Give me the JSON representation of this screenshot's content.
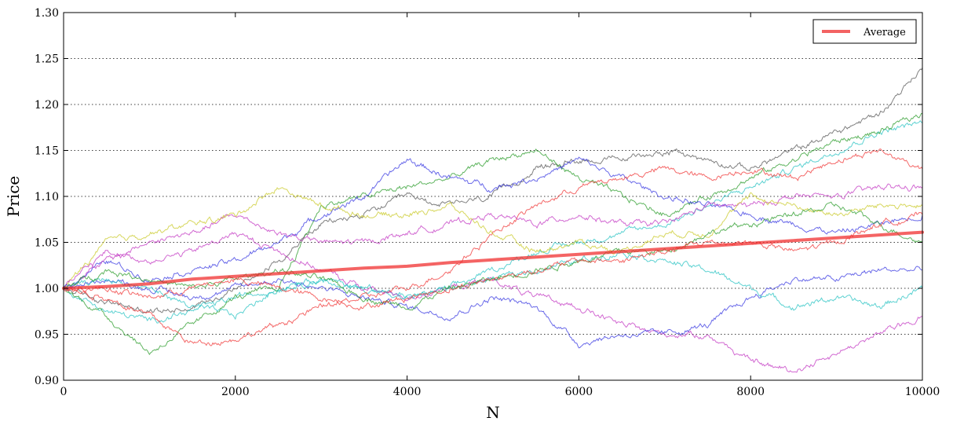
{
  "chart_data": {
    "type": "line",
    "xlabel": "N",
    "ylabel": "Price",
    "xlim": [
      0,
      10000
    ],
    "ylim": [
      0.9,
      1.3
    ],
    "x_ticks": [
      0,
      2000,
      4000,
      6000,
      8000,
      10000
    ],
    "y_ticks": [
      0.9,
      0.95,
      1.0,
      1.05,
      1.1,
      1.15,
      1.2,
      1.25,
      1.3
    ],
    "y_tick_labels": [
      "0.90",
      "0.95",
      "1.00",
      "1.05",
      "1.10",
      "1.15",
      "1.20",
      "1.25",
      "1.30"
    ],
    "grid": "horizontal-dotted",
    "legend": {
      "position": "top-right",
      "entries": [
        "Average"
      ]
    },
    "x": [
      0,
      500,
      1000,
      1500,
      2000,
      2500,
      3000,
      3500,
      4000,
      4500,
      5000,
      5500,
      6000,
      6500,
      7000,
      7500,
      8000,
      8500,
      9000,
      9500,
      10000
    ],
    "series": [
      {
        "color": "#505050",
        "values": [
          1.0,
          0.985,
          0.975,
          0.98,
          1.0,
          1.03,
          1.07,
          1.08,
          1.1,
          1.09,
          1.1,
          1.13,
          1.14,
          1.14,
          1.15,
          1.14,
          1.13,
          1.15,
          1.17,
          1.19,
          1.24
        ]
      },
      {
        "color": "#20c0c0",
        "values": [
          1.0,
          0.975,
          0.965,
          0.975,
          0.99,
          1.0,
          1.01,
          1.0,
          0.99,
          1.0,
          1.02,
          1.04,
          1.05,
          1.06,
          1.07,
          1.09,
          1.11,
          1.13,
          1.15,
          1.17,
          1.18
        ]
      },
      {
        "color": "#229922",
        "values": [
          1.0,
          0.97,
          0.93,
          0.96,
          0.99,
          1.0,
          1.09,
          1.1,
          1.11,
          1.12,
          1.14,
          1.15,
          1.12,
          1.1,
          1.08,
          1.1,
          1.12,
          1.14,
          1.16,
          1.17,
          1.19
        ]
      },
      {
        "color": "#3030e0",
        "values": [
          1.0,
          1.03,
          1.01,
          1.02,
          1.03,
          1.05,
          1.08,
          1.1,
          1.14,
          1.12,
          1.11,
          1.12,
          1.14,
          1.12,
          1.1,
          1.09,
          1.08,
          1.07,
          1.06,
          1.07,
          1.08
        ]
      },
      {
        "color": "#f03030",
        "values": [
          1.0,
          0.99,
          0.97,
          0.94,
          0.945,
          0.96,
          0.98,
          0.99,
          1.0,
          1.02,
          1.06,
          1.09,
          1.11,
          1.12,
          1.13,
          1.12,
          1.13,
          1.12,
          1.14,
          1.15,
          1.13
        ]
      },
      {
        "color": "#c030c0",
        "values": [
          1.0,
          1.03,
          1.05,
          1.06,
          1.08,
          1.06,
          1.05,
          1.05,
          1.06,
          1.07,
          1.08,
          1.07,
          1.08,
          1.07,
          1.07,
          1.09,
          1.09,
          1.1,
          1.1,
          1.11,
          1.11
        ]
      },
      {
        "color": "#c8c820",
        "values": [
          1.0,
          1.05,
          1.06,
          1.07,
          1.08,
          1.11,
          1.09,
          1.08,
          1.08,
          1.09,
          1.06,
          1.04,
          1.05,
          1.04,
          1.06,
          1.06,
          1.1,
          1.09,
          1.08,
          1.09,
          1.09
        ]
      },
      {
        "color": "#c030c0",
        "values": [
          1.0,
          1.04,
          1.03,
          1.04,
          1.06,
          1.04,
          1.02,
          1.0,
          0.99,
          1.0,
          1.01,
          0.99,
          0.98,
          0.96,
          0.95,
          0.95,
          0.92,
          0.91,
          0.93,
          0.95,
          0.97
        ]
      },
      {
        "color": "#3030e0",
        "values": [
          1.0,
          1.01,
          1.0,
          0.99,
          1.0,
          1.01,
          1.0,
          0.99,
          0.98,
          0.97,
          0.99,
          0.98,
          0.94,
          0.95,
          0.95,
          0.96,
          0.99,
          1.01,
          1.01,
          1.02,
          1.02
        ]
      },
      {
        "color": "#20c0c0",
        "values": [
          1.0,
          1.01,
          1.0,
          0.98,
          0.97,
          1.0,
          1.01,
          1.0,
          0.99,
          1.0,
          1.01,
          1.02,
          1.03,
          1.04,
          1.03,
          1.02,
          1.0,
          0.98,
          0.99,
          0.98,
          1.0
        ]
      },
      {
        "color": "#229922",
        "values": [
          1.0,
          1.02,
          1.01,
          1.0,
          1.01,
          1.02,
          1.01,
          0.99,
          0.98,
          1.0,
          1.01,
          1.02,
          1.03,
          1.04,
          1.04,
          1.06,
          1.07,
          1.08,
          1.09,
          1.07,
          1.05
        ]
      },
      {
        "color": "#f03030",
        "values": [
          1.0,
          1.0,
          0.99,
          1.0,
          1.01,
          1.0,
          0.99,
          0.98,
          0.99,
          1.0,
          1.01,
          1.02,
          1.03,
          1.03,
          1.04,
          1.05,
          1.05,
          1.04,
          1.05,
          1.07,
          1.08
        ]
      },
      {
        "name": "Average",
        "color": "#f03030",
        "average": true,
        "values": [
          1.0,
          1.002,
          1.005,
          1.01,
          1.013,
          1.016,
          1.019,
          1.022,
          1.024,
          1.028,
          1.031,
          1.034,
          1.037,
          1.04,
          1.043,
          1.046,
          1.049,
          1.052,
          1.055,
          1.058,
          1.061
        ]
      }
    ]
  }
}
